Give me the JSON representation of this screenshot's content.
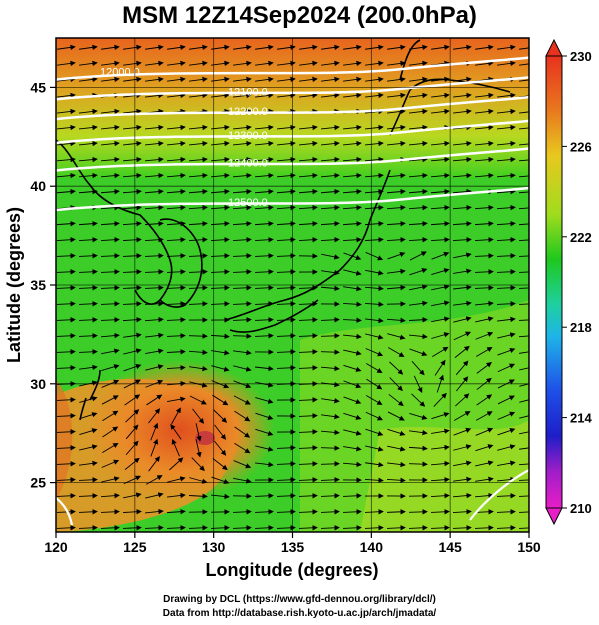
{
  "title": "MSM 12Z14Sep2024 (200.0hPa)",
  "x_axis": {
    "label": "Longitude (degrees)",
    "ticks": [
      "120",
      "125",
      "130",
      "135",
      "140",
      "145",
      "150"
    ],
    "range": [
      120,
      150
    ]
  },
  "y_axis": {
    "label": "Latitude (degrees)",
    "ticks": [
      "25",
      "30",
      "35",
      "40",
      "45"
    ],
    "range": [
      22.5,
      47.5
    ]
  },
  "colorbar": {
    "ticks": [
      "230",
      "226",
      "222",
      "218",
      "214",
      "210"
    ],
    "range": [
      210,
      230
    ]
  },
  "contours": [
    {
      "label": "12000.0",
      "lat": 45.8
    },
    {
      "label": "12100.0",
      "lat": 44.8
    },
    {
      "label": "12200.0",
      "lat": 43.8
    },
    {
      "label": "12300.0",
      "lat": 42.6
    },
    {
      "label": "12400.0",
      "lat": 41.2
    },
    {
      "label": "12500.0",
      "lat": 39.2
    }
  ],
  "credits": {
    "line1": "Drawing by DCL (https://www.gfd-dennou.org/library/dcl/)",
    "line2": "Data from http://database.rish.kyoto-u.ac.jp/arch/jmadata/"
  },
  "colors": {
    "warm": "#e8641e",
    "mid": "#d8d820",
    "cool": "#1ec81e",
    "contour": "#ffffff",
    "coast": "#000000"
  }
}
